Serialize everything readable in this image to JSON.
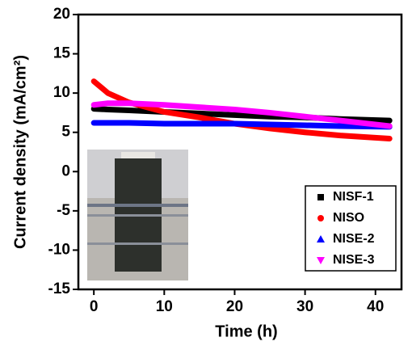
{
  "chart_data": {
    "type": "line",
    "x_label": "Time (h)",
    "y_label": "Current density (mA/cm²)",
    "x": [
      0,
      2,
      5,
      10,
      15,
      20,
      25,
      30,
      35,
      42
    ],
    "series": [
      {
        "name": "NISF-1",
        "color": "#000000",
        "marker": "square",
        "values": [
          8,
          7.9,
          7.8,
          7.6,
          7.4,
          7.2,
          7,
          6.9,
          6.7,
          6.5
        ]
      },
      {
        "name": "NISO",
        "color": "#ff0000",
        "marker": "circle",
        "values": [
          11.5,
          10,
          8.8,
          7.6,
          6.9,
          6.1,
          5.5,
          5,
          4.6,
          4.2
        ]
      },
      {
        "name": "NISE-2",
        "color": "#0000ff",
        "marker": "triangle-up",
        "values": [
          6.2,
          6.2,
          6.2,
          6.1,
          6.1,
          6.1,
          6,
          5.9,
          5.8,
          5.7
        ]
      },
      {
        "name": "NISE-3",
        "color": "#ff00ff",
        "marker": "triangle-down",
        "values": [
          8.5,
          8.7,
          8.7,
          8.5,
          8.2,
          7.9,
          7.5,
          7,
          6.5,
          5.8
        ]
      }
    ],
    "xlim": [
      -2.2,
      43.7
    ],
    "xticks": [
      0,
      10,
      20,
      30,
      40
    ],
    "ylim": [
      -15,
      20
    ],
    "yticks": [
      -15,
      -10,
      -5,
      0,
      5,
      10,
      15,
      20
    ]
  }
}
